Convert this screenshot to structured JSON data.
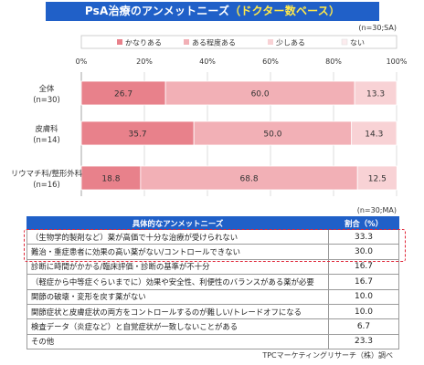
{
  "header": {
    "title_main": "PsA治療のアンメットニーズ",
    "title_highlight": "（ドクター数ベース）",
    "chart_note": "(n=30;SA)",
    "table_note": "(n=30;MA)"
  },
  "chart_data": {
    "type": "bar",
    "orientation": "horizontal",
    "stacked": true,
    "title": "PsA治療のアンメットニーズ（ドクター数ベース）",
    "xlim": [
      0,
      100
    ],
    "x_ticks": [
      "0%",
      "20%",
      "40%",
      "60%",
      "80%",
      "100%"
    ],
    "grid": true,
    "legend_position": "top",
    "categories": [
      {
        "label": "全体",
        "n": "(n=30)"
      },
      {
        "label": "皮膚科",
        "n": "(n=14)"
      },
      {
        "label": "リウマチ科/整形外科",
        "n": "(n=16)"
      }
    ],
    "series": [
      {
        "name": "かなりある",
        "color": "#e8818b",
        "values": [
          26.7,
          35.7,
          18.8
        ]
      },
      {
        "name": "ある程度ある",
        "color": "#f2b0b6",
        "values": [
          60.0,
          50.0,
          68.8
        ]
      },
      {
        "name": "少しある",
        "color": "#f8d2d5",
        "values": [
          13.3,
          14.3,
          12.5
        ]
      },
      {
        "name": "ない",
        "color": "#fcecee",
        "values": [
          0,
          0,
          0
        ]
      }
    ],
    "value_labels": [
      [
        "26.7",
        "60.0",
        "13.3"
      ],
      [
        "35.7",
        "50.0",
        "14.3"
      ],
      [
        "18.8",
        "68.8",
        "12.5"
      ]
    ]
  },
  "table": {
    "col_need": "具体的なアンメットニーズ",
    "col_pct": "割合（%）",
    "rows": [
      {
        "need": "（生物学的製剤など）薬が高価で十分な治療が受けられない",
        "pct": "33.3"
      },
      {
        "need": "難治・重症患者に効果の高い薬がない/コントロールできない",
        "pct": "30.0"
      },
      {
        "need": "診断に時間がかかる/臨床評価・診断の基準が不十分",
        "pct": "16.7"
      },
      {
        "need": "（軽症から中等症ぐらいまでに）効果や安全性、利便性のバランスがある薬が必要",
        "pct": "16.7"
      },
      {
        "need": "関節の破壊・変形を戻す薬がない",
        "pct": "10.0"
      },
      {
        "need": "関節症状と皮膚症状の両方をコントロールするのが難しい/トレードオフになる",
        "pct": "10.0"
      },
      {
        "need": "検査データ（炎症など）と自覚症状が一致しないことがある",
        "pct": "6.7"
      },
      {
        "need": "その他",
        "pct": "23.3"
      }
    ]
  },
  "footer": {
    "credit": "TPCマーケティングリサーチ（株）調べ"
  }
}
